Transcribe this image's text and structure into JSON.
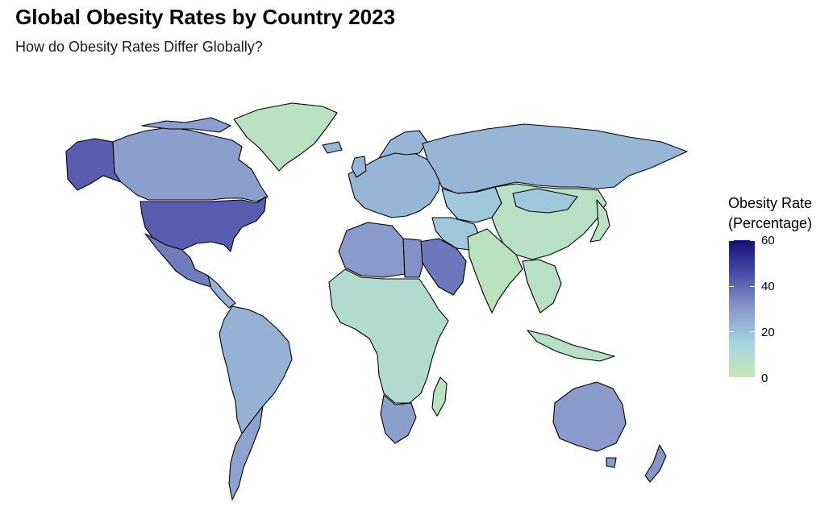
{
  "title": "Global Obesity Rates by Country 2023",
  "subtitle": "How do Obesity Rates Differ Globally?",
  "legend": {
    "title_line1": "Obesity Rate",
    "title_line2": "(Percentage)",
    "scale_min": 0,
    "scale_max": 60,
    "ticks": [
      "60",
      "40",
      "20",
      "0"
    ],
    "colors": [
      "#c2e8b3",
      "#a6d3e0",
      "#8a9bcb",
      "#4c4da8",
      "#131178"
    ]
  },
  "chart_data": {
    "type": "choropleth",
    "title": "Global Obesity Rates by Country 2023",
    "subtitle": "How do Obesity Rates Differ Globally?",
    "value_label": "Obesity Rate (Percentage)",
    "scale": [
      0,
      60
    ],
    "regions": [
      {
        "name": "Canada",
        "value": 29
      },
      {
        "name": "United States",
        "value": 42
      },
      {
        "name": "Alaska",
        "value": 42
      },
      {
        "name": "Mexico",
        "value": 36
      },
      {
        "name": "Greenland",
        "value": 5
      },
      {
        "name": "South America",
        "value": 24
      },
      {
        "name": "Argentina",
        "value": 28
      },
      {
        "name": "Chile",
        "value": 30
      },
      {
        "name": "Western Europe",
        "value": 23
      },
      {
        "name": "Russia",
        "value": 23
      },
      {
        "name": "Central Asia",
        "value": 18
      },
      {
        "name": "China",
        "value": 6
      },
      {
        "name": "India",
        "value": 4
      },
      {
        "name": "Southeast Asia",
        "value": 6
      },
      {
        "name": "North Africa",
        "value": 30
      },
      {
        "name": "Egypt",
        "value": 32
      },
      {
        "name": "Saudi Arabia",
        "value": 37
      },
      {
        "name": "Sub-Saharan Africa",
        "value": 9
      },
      {
        "name": "South Africa",
        "value": 29
      },
      {
        "name": "Madagascar",
        "value": 5
      },
      {
        "name": "Australia",
        "value": 30
      },
      {
        "name": "New Zealand",
        "value": 31
      },
      {
        "name": "Japan",
        "value": 5
      }
    ]
  }
}
